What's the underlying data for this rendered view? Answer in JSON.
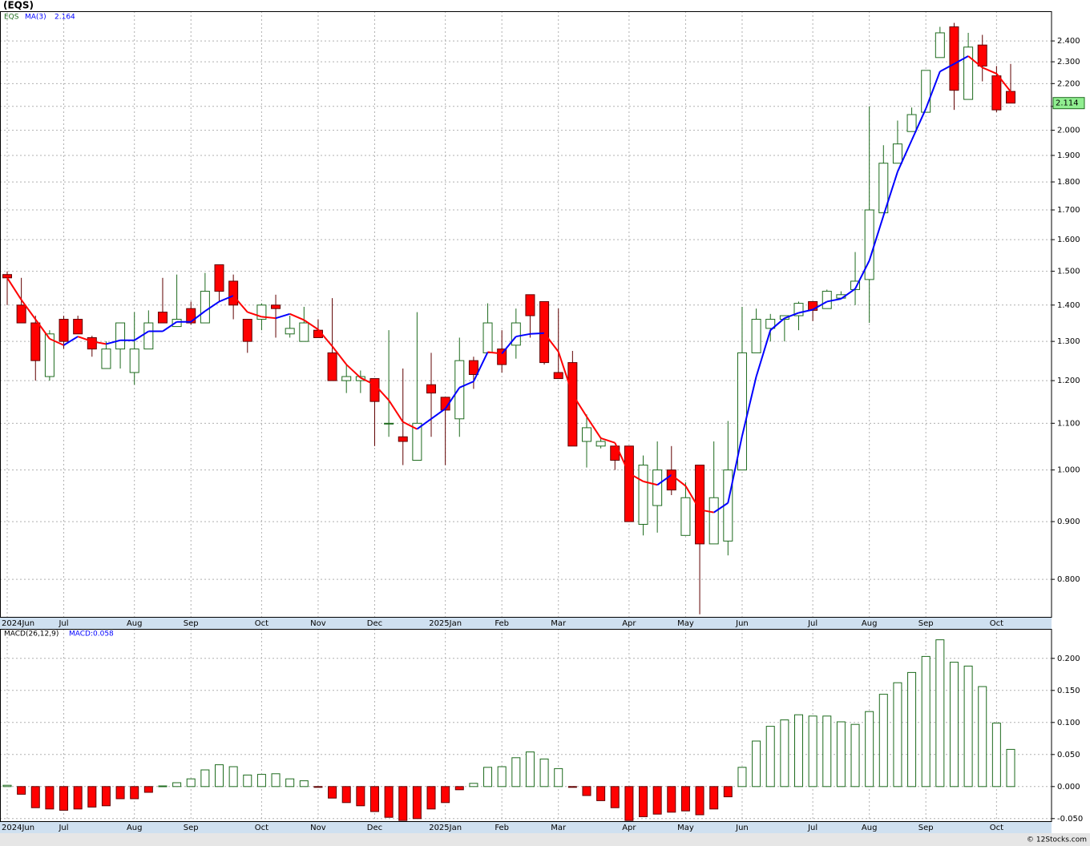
{
  "chart_data": [
    {
      "type": "candlestick",
      "title": "(EQS)",
      "name": "EQS",
      "log_scale": true,
      "grid": true,
      "up_color": "#1e6b1e",
      "down_color": "#ff0000",
      "categories": [
        "2024Jun",
        null,
        null,
        null,
        "Jul",
        null,
        null,
        null,
        null,
        "Aug",
        null,
        null,
        null,
        "Sep",
        null,
        null,
        null,
        null,
        "Oct",
        null,
        null,
        null,
        "Nov",
        null,
        null,
        null,
        "Dec",
        null,
        null,
        null,
        null,
        "2025Jan",
        null,
        null,
        null,
        "Feb",
        null,
        null,
        null,
        "Mar",
        null,
        null,
        null,
        null,
        "Apr",
        null,
        null,
        null,
        "May",
        null,
        null,
        null,
        "Jun",
        null,
        null,
        null,
        null,
        "Jul",
        null,
        null,
        null,
        "Aug",
        null,
        null,
        null,
        "Sep",
        null,
        null,
        null,
        null,
        "Oct",
        null
      ],
      "open": [
        1.49,
        1.4,
        1.35,
        1.21,
        1.36,
        1.36,
        1.31,
        1.23,
        1.28,
        1.22,
        1.28,
        1.38,
        1.34,
        1.39,
        1.35,
        1.52,
        1.47,
        1.36,
        1.36,
        1.4,
        1.32,
        1.3,
        1.33,
        1.27,
        1.2,
        1.2,
        1.205,
        1.1,
        1.07,
        1.02,
        1.19,
        1.16,
        1.11,
        1.25,
        1.27,
        1.28,
        1.29,
        1.43,
        1.41,
        1.22,
        1.245,
        1.06,
        1.05,
        1.05,
        1.05,
        0.895,
        0.93,
        1.0,
        0.875,
        1.01,
        0.86,
        0.865,
        1.0,
        1.27,
        1.335,
        1.36,
        1.37,
        1.41,
        1.39,
        1.42,
        1.445,
        1.475,
        1.69,
        1.87,
        1.995,
        2.075,
        2.32,
        2.47,
        2.13,
        2.38,
        2.235,
        2.165
      ],
      "high": [
        1.5,
        1.48,
        1.37,
        1.33,
        1.37,
        1.37,
        1.315,
        1.3,
        1.35,
        1.38,
        1.385,
        1.48,
        1.49,
        1.41,
        1.495,
        1.52,
        1.49,
        1.36,
        1.405,
        1.43,
        1.37,
        1.395,
        1.36,
        1.42,
        1.24,
        1.225,
        1.205,
        1.33,
        1.23,
        1.38,
        1.27,
        1.16,
        1.31,
        1.26,
        1.405,
        1.33,
        1.39,
        1.43,
        1.41,
        1.39,
        1.275,
        1.12,
        1.07,
        1.05,
        1.05,
        1.03,
        1.06,
        1.05,
        0.975,
        1.01,
        1.06,
        1.105,
        1.395,
        1.39,
        1.375,
        1.37,
        1.41,
        1.41,
        1.445,
        1.44,
        1.56,
        2.1,
        1.94,
        2.04,
        2.095,
        2.26,
        2.47,
        2.49,
        2.44,
        2.43,
        2.28,
        2.29
      ],
      "low": [
        1.4,
        1.35,
        1.2,
        1.2,
        1.28,
        1.32,
        1.26,
        1.23,
        1.23,
        1.19,
        1.28,
        1.35,
        1.34,
        1.345,
        1.35,
        1.41,
        1.36,
        1.27,
        1.33,
        1.31,
        1.31,
        1.3,
        1.31,
        1.2,
        1.17,
        1.17,
        1.05,
        1.07,
        1.01,
        1.02,
        1.07,
        1.01,
        1.07,
        1.18,
        1.27,
        1.22,
        1.255,
        1.31,
        1.24,
        1.205,
        1.05,
        1.005,
        1.045,
        1.0,
        0.9,
        0.875,
        0.88,
        0.95,
        0.875,
        0.745,
        0.86,
        0.84,
        1.0,
        1.27,
        1.3,
        1.3,
        1.33,
        1.355,
        1.39,
        1.42,
        1.4,
        1.35,
        1.69,
        1.87,
        1.995,
        2.075,
        2.32,
        2.085,
        2.13,
        2.21,
        2.075,
        2.114
      ],
      "close": [
        1.48,
        1.35,
        1.25,
        1.32,
        1.3,
        1.32,
        1.28,
        1.28,
        1.35,
        1.28,
        1.35,
        1.35,
        1.36,
        1.35,
        1.44,
        1.44,
        1.4,
        1.3,
        1.4,
        1.39,
        1.335,
        1.35,
        1.31,
        1.2,
        1.21,
        1.21,
        1.15,
        1.1,
        1.06,
        1.1,
        1.17,
        1.13,
        1.25,
        1.215,
        1.35,
        1.24,
        1.35,
        1.37,
        1.245,
        1.205,
        1.05,
        1.09,
        1.06,
        1.02,
        0.9,
        1.01,
        1.0,
        0.96,
        0.945,
        0.86,
        0.945,
        1.0,
        1.27,
        1.36,
        1.36,
        1.37,
        1.405,
        1.385,
        1.44,
        1.43,
        1.47,
        1.7,
        1.87,
        1.945,
        2.065,
        2.26,
        2.44,
        2.17,
        2.37,
        2.28,
        2.085,
        2.114
      ],
      "last_close_label": "2.114",
      "ma": {
        "name": "MA(3)",
        "value_label": "2.164",
        "up_color": "#0000ff",
        "down_color": "#ff0000",
        "values": [
          1.48,
          1.415,
          1.36,
          1.307,
          1.29,
          1.313,
          1.3,
          1.293,
          1.303,
          1.303,
          1.327,
          1.327,
          1.353,
          1.353,
          1.383,
          1.41,
          1.427,
          1.38,
          1.367,
          1.363,
          1.375,
          1.358,
          1.332,
          1.287,
          1.24,
          1.207,
          1.19,
          1.153,
          1.103,
          1.087,
          1.11,
          1.133,
          1.183,
          1.198,
          1.272,
          1.268,
          1.313,
          1.32,
          1.322,
          1.273,
          1.167,
          1.115,
          1.067,
          1.057,
          0.993,
          0.977,
          0.97,
          0.99,
          0.968,
          0.922,
          0.917,
          0.935,
          1.072,
          1.21,
          1.33,
          1.363,
          1.378,
          1.387,
          1.41,
          1.418,
          1.447,
          1.533,
          1.68,
          1.838,
          1.96,
          2.09,
          2.255,
          2.29,
          2.327,
          2.273,
          2.245,
          2.164
        ]
      },
      "ylim": [
        0.741,
        2.55
      ],
      "yticks": [
        {
          "value": 0.8,
          "label": "0.800"
        },
        {
          "value": 0.9,
          "label": "0.900"
        },
        {
          "value": 1.0,
          "label": "1.000"
        },
        {
          "value": 1.1,
          "label": "1.100"
        },
        {
          "value": 1.2,
          "label": "1.200"
        },
        {
          "value": 1.3,
          "label": "1.300"
        },
        {
          "value": 1.4,
          "label": "1.400"
        },
        {
          "value": 1.5,
          "label": "1.500"
        },
        {
          "value": 1.6,
          "label": "1.600"
        },
        {
          "value": 1.7,
          "label": "1.700"
        },
        {
          "value": 1.8,
          "label": "1.800"
        },
        {
          "value": 1.9,
          "label": "1.900"
        },
        {
          "value": 2.0,
          "label": "2.000"
        },
        {
          "value": 2.1,
          "label": "2.100"
        },
        {
          "value": 2.2,
          "label": "2.200"
        },
        {
          "value": 2.3,
          "label": "2.300"
        },
        {
          "value": 2.4,
          "label": "2.400"
        }
      ]
    },
    {
      "type": "histogram_bar",
      "name": "MACD(26,12,9)",
      "current_label": "MACD:0.058",
      "grid": true,
      "up_color": "#1e6b1e",
      "down_color": "#ff0000",
      "values": [
        0.002,
        -0.012,
        -0.033,
        -0.035,
        -0.037,
        -0.035,
        -0.032,
        -0.03,
        -0.019,
        -0.019,
        -0.009,
        0.001,
        0.006,
        0.012,
        0.026,
        0.034,
        0.031,
        0.018,
        0.019,
        0.02,
        0.012,
        0.009,
        -0.001,
        -0.018,
        -0.025,
        -0.03,
        -0.039,
        -0.048,
        -0.053,
        -0.05,
        -0.035,
        -0.025,
        -0.005,
        0.005,
        0.03,
        0.031,
        0.045,
        0.054,
        0.043,
        0.028,
        -0.001,
        -0.014,
        -0.022,
        -0.033,
        -0.053,
        -0.047,
        -0.043,
        -0.04,
        -0.038,
        -0.044,
        -0.035,
        -0.016,
        0.03,
        0.071,
        0.094,
        0.104,
        0.112,
        0.11,
        0.11,
        0.101,
        0.097,
        0.117,
        0.144,
        0.162,
        0.178,
        0.203,
        0.229,
        0.194,
        0.188,
        0.156,
        0.099,
        0.058
      ],
      "ylim": [
        -0.054,
        0.246
      ],
      "yticks": [
        {
          "value": -0.05,
          "label": "-0.050"
        },
        {
          "value": 0,
          "label": "0.000"
        },
        {
          "value": 0.05,
          "label": "0.050"
        },
        {
          "value": 0.1,
          "label": "0.100"
        },
        {
          "value": 0.15,
          "label": "0.150"
        },
        {
          "value": 0.2,
          "label": "0.200"
        }
      ]
    }
  ],
  "footer": "© 12Stocks.com"
}
